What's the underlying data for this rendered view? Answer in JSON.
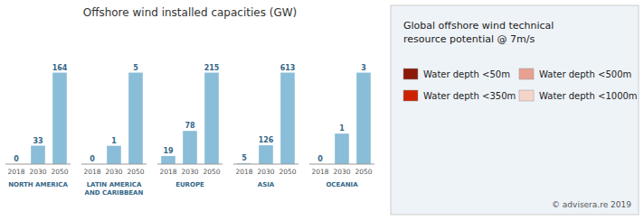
{
  "title": "Offshore wind installed capacities (GW)",
  "chart_data": [
    {
      "type": "bar",
      "xlabel": "NORTH AMERICA",
      "categories": [
        "2018",
        "2030",
        "2050"
      ],
      "values": [
        0,
        33,
        164
      ],
      "color": "#89bdd8",
      "ylim": [
        0,
        229.6
      ],
      "data_labels": true,
      "tick_labels": "x"
    },
    {
      "type": "bar",
      "xlabel": "LATIN AMERICA\nAND CARIBBEAN",
      "categories": [
        "2018",
        "2030",
        "2050"
      ],
      "values": [
        0,
        1,
        5
      ],
      "color": "#89bdd8",
      "ylim": [
        0,
        7
      ],
      "data_labels": true,
      "tick_labels": "x"
    },
    {
      "type": "bar",
      "xlabel": "EUROPE",
      "categories": [
        "2018",
        "2030",
        "2050"
      ],
      "values": [
        19,
        78,
        215
      ],
      "color": "#89bdd8",
      "ylim": [
        0,
        301
      ],
      "data_labels": true,
      "tick_labels": "x"
    },
    {
      "type": "bar",
      "xlabel": "ASIA",
      "categories": [
        "2018",
        "2030",
        "2050"
      ],
      "values": [
        5,
        126,
        613
      ],
      "color": "#89bdd8",
      "ylim": [
        0,
        858.2
      ],
      "data_labels": true,
      "tick_labels": "x"
    },
    {
      "type": "bar",
      "xlabel": "OCEANIA",
      "categories": [
        "2018",
        "2030",
        "2050"
      ],
      "values": [
        0,
        1,
        3
      ],
      "color": "#89bdd8",
      "ylim": [
        0,
        4.2
      ],
      "data_labels": true,
      "tick_labels": "x"
    },
    {
      "type": "map",
      "title": "Global offshore wind technical\nresource potential @ 7m/s",
      "series": [
        {
          "name": "Water depth <50m",
          "color": "#8b1a0a"
        },
        {
          "name": "Water depth <500m",
          "color": "#e8a090"
        },
        {
          "name": "Water depth <350m",
          "color": "#cc2200"
        },
        {
          "name": "Water depth <1000m",
          "color": "#f5d5c8"
        }
      ],
      "annotations": [
        "© advisera.re 2019"
      ]
    }
  ]
}
